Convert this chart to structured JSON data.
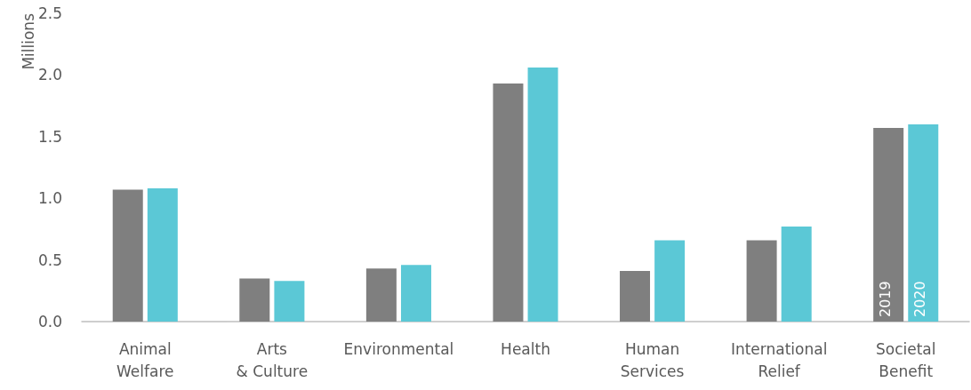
{
  "chart_data": {
    "type": "bar",
    "ylabel": "Millions",
    "categories": [
      "Animal\nWelfare",
      "Arts\n& Culture",
      "Environmental",
      "Health",
      "Human\nServices",
      "International\nRelief",
      "Societal\nBenefit"
    ],
    "series": [
      {
        "name": "2019",
        "color": "#7f7f7f",
        "values": [
          1.07,
          0.35,
          0.43,
          1.93,
          0.41,
          0.66,
          1.57
        ]
      },
      {
        "name": "2020",
        "color": "#5bc8d6",
        "values": [
          1.08,
          0.33,
          0.46,
          2.06,
          0.66,
          0.77,
          1.6
        ]
      }
    ],
    "ylim": [
      0,
      2.5
    ],
    "yticks": [
      {
        "value": 0,
        "label": "0.0"
      },
      {
        "value": 0.5,
        "label": "0.5"
      },
      {
        "value": 1,
        "label": "1.0"
      },
      {
        "value": 1.5,
        "label": "1.5"
      },
      {
        "value": 2,
        "label": "2.0"
      },
      {
        "value": 2.5,
        "label": "2.5"
      }
    ],
    "grid": false,
    "legend": false
  }
}
